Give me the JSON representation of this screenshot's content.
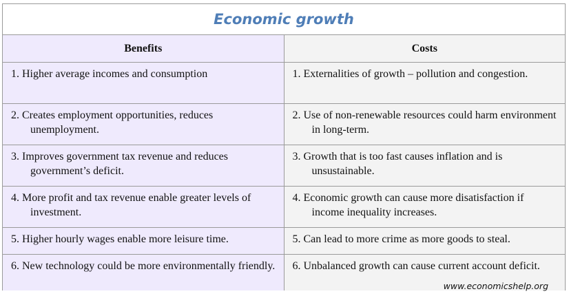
{
  "title": "Economic growth",
  "headers": {
    "benefits": "Benefits",
    "costs": "Costs"
  },
  "benefits": [
    "1. Higher average incomes and consumption",
    "2. Creates employment opportunities, reduces unemployment.",
    "3.  Improves government tax revenue and reduces government’s deficit.",
    "4.  More profit and tax revenue enable greater levels of investment.",
    "5.  Higher hourly wages enable more leisure time.",
    "6.  New technology could be more environmentally friendly."
  ],
  "costs": [
    "1. Externalities of growth – pollution and congestion.",
    "2. Use of non-renewable resources could harm environment in long-term.",
    "3. Growth that is too fast causes inflation and is unsustainable.",
    "4.  Economic growth can cause more disatisfaction if income inequality increases.",
    "5.  Can lead to more crime as more goods to steal.",
    "6.  Unbalanced growth can cause current account deficit."
  ],
  "footer": "www.economicshelp.org"
}
